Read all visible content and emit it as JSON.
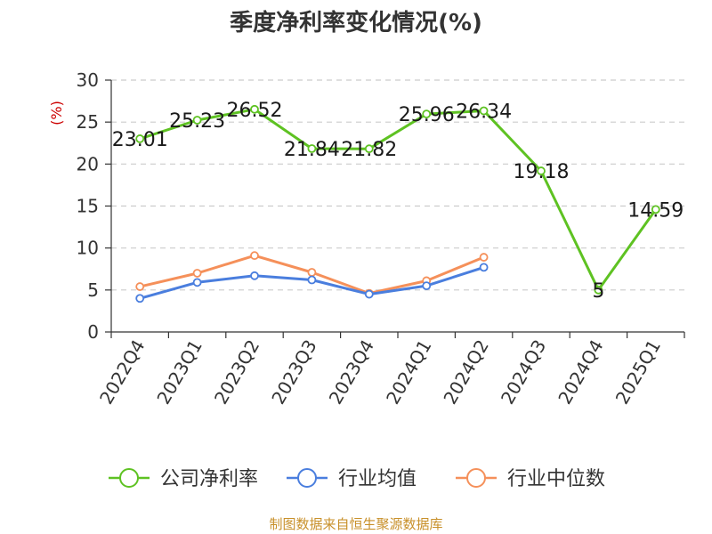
{
  "chart_data": {
    "type": "line",
    "title": "季度净利率变化情况(%)",
    "ylabel": "(%)",
    "categories": [
      "2022Q4",
      "2023Q1",
      "2023Q2",
      "2023Q3",
      "2023Q4",
      "2024Q1",
      "2024Q2",
      "2024Q3",
      "2024Q4",
      "2025Q1"
    ],
    "ylim": [
      0,
      30
    ],
    "yticks": [
      0,
      5,
      10,
      15,
      20,
      25,
      30
    ],
    "grid": true,
    "legend_position": "bottom",
    "series": [
      {
        "name": "公司净利率",
        "color": "#5ec222",
        "values": [
          23.01,
          25.23,
          26.52,
          21.84,
          21.82,
          25.96,
          26.34,
          19.18,
          5,
          14.59
        ],
        "labels": [
          "23.01",
          "25.23",
          "26.52",
          "21.84",
          "21.82",
          "25.96",
          "26.34",
          "19.18",
          "5",
          "14.59"
        ],
        "show_labels": true
      },
      {
        "name": "行业均值",
        "color": "#4a7ede",
        "values": [
          4.0,
          5.9,
          6.7,
          6.2,
          4.5,
          5.5,
          7.7,
          null,
          null,
          null
        ],
        "show_labels": false
      },
      {
        "name": "行业中位数",
        "color": "#f5905a",
        "values": [
          5.4,
          7.0,
          9.1,
          7.1,
          4.6,
          6.1,
          8.9,
          null,
          null,
          null
        ],
        "show_labels": false
      }
    ]
  },
  "source_text": "制图数据来自恒生聚源数据库",
  "colors": {
    "unit_label": "#cc0000",
    "source_text": "#c8902a",
    "axis": "#333333",
    "grid": "#cccccc"
  }
}
